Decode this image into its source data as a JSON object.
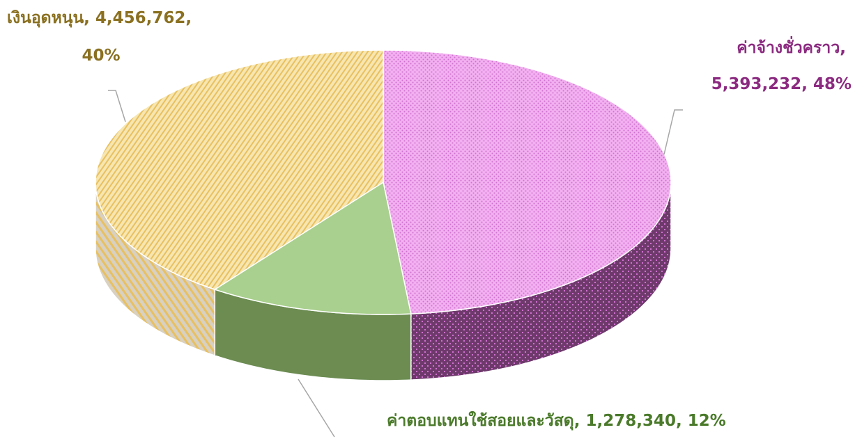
{
  "chart_data": {
    "type": "pie3d",
    "categories": [
      "ค่าจ้างชั่วคราว",
      "ค่าตอบแทนใช้สอยและวัสดุ",
      "เงินอุดหนุน"
    ],
    "values": [
      5393232,
      1278340,
      4456762
    ],
    "value_labels": [
      "5,393,232",
      "1,278,340",
      "4,456,762"
    ],
    "percent_labels": [
      "48%",
      "12%",
      "40%"
    ],
    "label_separator": ", ",
    "colors": [
      "#f2b0f0",
      "#a9d08e",
      "#f7e6b0"
    ],
    "pattern_colors": [
      "#d070d0",
      "#a9d08e",
      "#e8c060"
    ],
    "side_colors": [
      "#6e3a6c",
      "#6c8c52",
      "#d8d0c0"
    ],
    "label_colors": [
      "#8b2a80",
      "#4a7a2a",
      "#8a7020"
    ]
  }
}
